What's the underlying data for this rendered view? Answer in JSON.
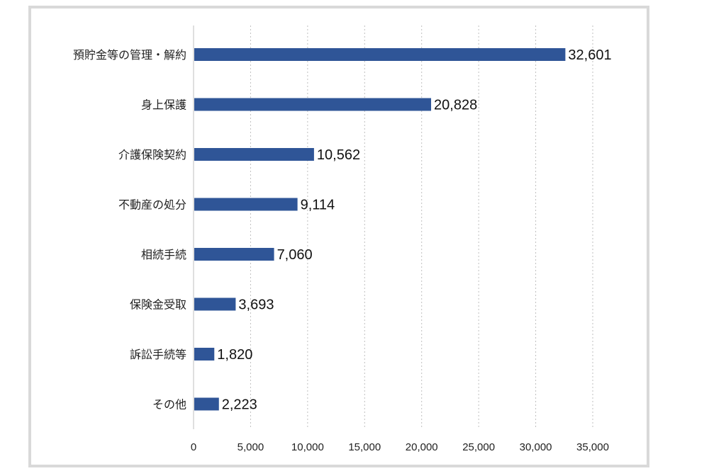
{
  "chart_data": {
    "type": "bar",
    "orientation": "horizontal",
    "categories": [
      "預貯金等の管理・解約",
      "身上保護",
      "介護保険契約",
      "不動産の処分",
      "相続手続",
      "保険金受取",
      "訴訟手続等",
      "その他"
    ],
    "values": [
      32601,
      20828,
      10562,
      9114,
      7060,
      3693,
      1820,
      2223
    ],
    "value_labels": [
      "32,601",
      "20,828",
      "10,562",
      "9,114",
      "7,060",
      "3,693",
      "1,820",
      "2,223"
    ],
    "xlim": [
      0,
      35000
    ],
    "x_ticks": [
      0,
      5000,
      10000,
      15000,
      20000,
      25000,
      30000,
      35000
    ],
    "x_tick_labels": [
      "0",
      "5,000",
      "10,000",
      "15,000",
      "20,000",
      "25,000",
      "30,000",
      "35,000"
    ],
    "grid": "vertical dotted",
    "bar_color": "#2f5597",
    "title": "",
    "xlabel": "",
    "ylabel": ""
  }
}
